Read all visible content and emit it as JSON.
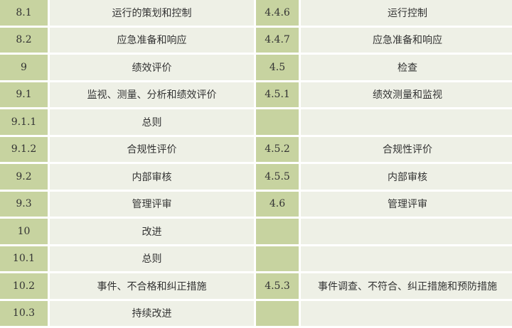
{
  "colors": {
    "key_cell": "#c7d3a0",
    "value_cell": "#eef0e6",
    "border": "#ffffff"
  },
  "rows": [
    {
      "left_no": "8.1",
      "left_title": "运行的策划和控制",
      "right_no": "4.4.6",
      "right_title": "运行控制"
    },
    {
      "left_no": "8.2",
      "left_title": "应急准备和响应",
      "right_no": "4.4.7",
      "right_title": "应急准备和响应"
    },
    {
      "left_no": "9",
      "left_title": "绩效评价",
      "right_no": "4.5",
      "right_title": "检查"
    },
    {
      "left_no": "9.1",
      "left_title": "监视、测量、分析和绩效评价",
      "right_no": "4.5.1",
      "right_title": "绩效测量和监视"
    },
    {
      "left_no": "9.1.1",
      "left_title": "总则",
      "right_no": "",
      "right_title": ""
    },
    {
      "left_no": "9.1.2",
      "left_title": "合规性评价",
      "right_no": "4.5.2",
      "right_title": "合规性评价"
    },
    {
      "left_no": "9.2",
      "left_title": "内部审核",
      "right_no": "4.5.5",
      "right_title": "内部审核"
    },
    {
      "left_no": "9.3",
      "left_title": "管理评审",
      "right_no": "4.6",
      "right_title": "管理评审"
    },
    {
      "left_no": "10",
      "left_title": "改进",
      "right_no": "",
      "right_title": ""
    },
    {
      "left_no": "10.1",
      "left_title": "总则",
      "right_no": "",
      "right_title": ""
    },
    {
      "left_no": "10.2",
      "left_title": "事件、不合格和纠正措施",
      "right_no": "4.5.3",
      "right_title": "事件调查、不符合、纠正措施和预防措施"
    },
    {
      "left_no": "10.3",
      "left_title": "持续改进",
      "right_no": "",
      "right_title": ""
    }
  ]
}
